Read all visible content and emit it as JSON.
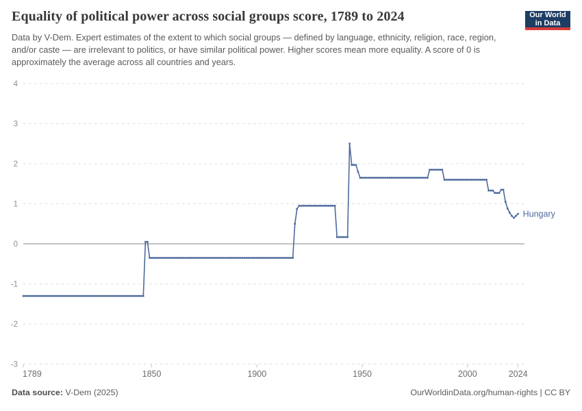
{
  "header": {
    "title": "Equality of political power across social groups score, 1789 to 2024",
    "subtitle": "Data by V-Dem. Expert estimates of the extent to which social groups — defined by language, ethnicity, religion, race, region, and/or caste — are irrelevant to politics, or have similar political power. Higher scores mean more equality. A score of 0 is approximately the average across all countries and years.",
    "logo": {
      "line1": "Our World",
      "line2": "in Data",
      "bg": "#1d3d63",
      "accent": "#d73c37"
    }
  },
  "chart_data": {
    "type": "line",
    "title": "Equality of political power across social groups score, 1789 to 2024",
    "entity": "Hungary",
    "color": "#4c6a9c",
    "xlim": [
      1789,
      2024
    ],
    "ylim": [
      -3,
      4
    ],
    "grid": "dashed-horizontal",
    "legend_position": "end-of-line-label",
    "x_ticks": [
      1789,
      1850,
      1900,
      1950,
      2000,
      2024
    ],
    "y_ticks": [
      4,
      3,
      2,
      1,
      0,
      -1,
      -2,
      -3
    ],
    "steps": [
      [
        1789,
        1846,
        -1.3
      ],
      [
        1847,
        1848,
        0.05
      ],
      [
        1849,
        1917,
        -0.35
      ],
      [
        1918,
        1918,
        0.5
      ],
      [
        1919,
        1919,
        0.87
      ],
      [
        1920,
        1937,
        0.95
      ],
      [
        1938,
        1943,
        0.17
      ],
      [
        1944,
        1944,
        2.5
      ],
      [
        1945,
        1947,
        1.97
      ],
      [
        1948,
        1948,
        1.8
      ],
      [
        1949,
        1981,
        1.65
      ],
      [
        1982,
        1988,
        1.85
      ],
      [
        1989,
        2009,
        1.6
      ],
      [
        2010,
        2012,
        1.33
      ],
      [
        2013,
        2015,
        1.27
      ],
      [
        2016,
        2017,
        1.35
      ],
      [
        2018,
        2018,
        1.05
      ],
      [
        2019,
        2019,
        0.88
      ],
      [
        2020,
        2020,
        0.78
      ],
      [
        2021,
        2021,
        0.7
      ],
      [
        2022,
        2022,
        0.65
      ],
      [
        2023,
        2023,
        0.7
      ],
      [
        2024,
        2024,
        0.75
      ]
    ],
    "colors": {
      "gridline": "#dcdcdc",
      "zero_line": "#8a8a8a",
      "y_tick_label": "#8f8f8f",
      "x_tick_label": "#6b6b6b",
      "axis_tick": "#c4c4c4"
    }
  },
  "footer": {
    "source_label": "Data source:",
    "source_value": " V-Dem (2025)",
    "right": "OurWorldinData.org/human-rights | CC BY"
  }
}
